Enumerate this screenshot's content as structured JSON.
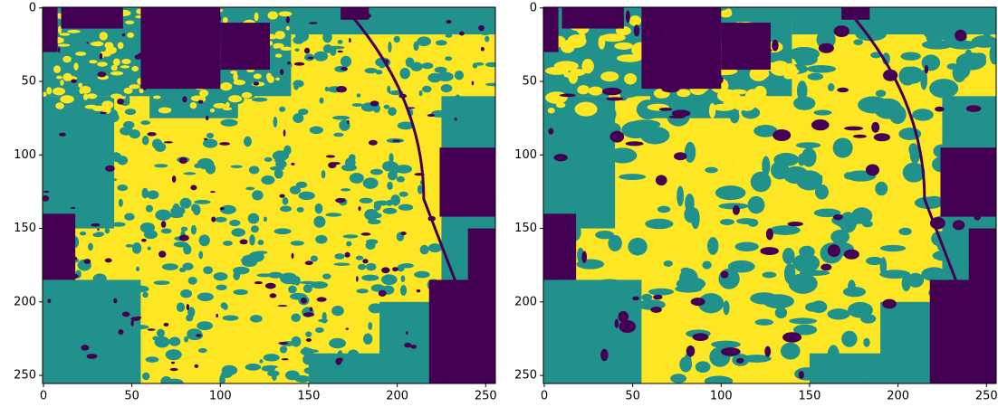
{
  "chart_data": [
    {
      "type": "image",
      "colors": [
        "#440154",
        "#21918c",
        "#fde725"
      ],
      "xlim": [
        -0.5,
        255.5
      ],
      "ylim": [
        255.5,
        -0.5
      ],
      "xticks": [
        0,
        50,
        100,
        150,
        200,
        250
      ],
      "yticks": [
        0,
        50,
        100,
        150,
        200,
        250
      ]
    },
    {
      "type": "image",
      "colors": [
        "#440154",
        "#21918c",
        "#fde725"
      ],
      "xlim": [
        -0.5,
        255.5
      ],
      "ylim": [
        255.5,
        -0.5
      ],
      "xticks": [
        0,
        50,
        100,
        150,
        200,
        250
      ],
      "yticks": [
        0,
        50,
        100,
        150,
        200,
        250
      ]
    }
  ]
}
